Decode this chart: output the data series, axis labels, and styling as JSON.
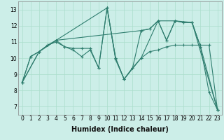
{
  "xlabel": "Humidex (Indice chaleur)",
  "bg_color": "#cceee8",
  "line_color": "#2e7d6e",
  "grid_color": "#aaddcc",
  "line1": [
    [
      0,
      8.5
    ],
    [
      1,
      10.1
    ],
    [
      2,
      10.4
    ],
    [
      3,
      10.8
    ],
    [
      4,
      11.1
    ],
    [
      5,
      10.7
    ],
    [
      6,
      10.5
    ],
    [
      7,
      10.1
    ],
    [
      8,
      10.5
    ],
    [
      9,
      9.4
    ],
    [
      10,
      13.1
    ],
    [
      11,
      9.9
    ],
    [
      12,
      8.7
    ],
    [
      13,
      9.4
    ],
    [
      14,
      11.7
    ],
    [
      15,
      11.8
    ],
    [
      16,
      12.3
    ],
    [
      17,
      11.1
    ],
    [
      18,
      12.3
    ],
    [
      19,
      12.2
    ],
    [
      20,
      12.2
    ],
    [
      21,
      10.7
    ],
    [
      22,
      7.9
    ],
    [
      23,
      6.8
    ]
  ],
  "line2": [
    [
      0,
      8.5
    ],
    [
      1,
      10.1
    ],
    [
      2,
      10.4
    ],
    [
      3,
      10.8
    ],
    [
      4,
      11.0
    ],
    [
      5,
      10.7
    ],
    [
      6,
      10.6
    ],
    [
      7,
      10.6
    ],
    [
      8,
      10.6
    ],
    [
      9,
      9.4
    ],
    [
      10,
      13.1
    ],
    [
      11,
      10.0
    ],
    [
      12,
      8.7
    ],
    [
      13,
      9.4
    ],
    [
      14,
      10.0
    ],
    [
      15,
      10.4
    ],
    [
      16,
      10.5
    ],
    [
      17,
      10.7
    ],
    [
      18,
      10.8
    ],
    [
      19,
      10.8
    ],
    [
      20,
      10.8
    ],
    [
      21,
      10.8
    ],
    [
      22,
      10.8
    ],
    [
      23,
      6.8
    ]
  ],
  "line3": [
    [
      0,
      8.5
    ],
    [
      2,
      10.4
    ],
    [
      4,
      11.1
    ],
    [
      10,
      13.1
    ],
    [
      11,
      10.0
    ],
    [
      12,
      8.7
    ],
    [
      14,
      10.0
    ],
    [
      16,
      12.3
    ],
    [
      18,
      12.3
    ],
    [
      20,
      12.2
    ],
    [
      21,
      10.7
    ],
    [
      23,
      6.8
    ]
  ],
  "line4": [
    [
      0,
      8.5
    ],
    [
      2,
      10.4
    ],
    [
      4,
      11.1
    ],
    [
      14,
      11.7
    ],
    [
      15,
      11.8
    ],
    [
      16,
      12.3
    ],
    [
      17,
      11.1
    ],
    [
      18,
      12.3
    ],
    [
      19,
      12.2
    ],
    [
      20,
      12.2
    ],
    [
      23,
      6.8
    ]
  ],
  "xlim": [
    -0.5,
    23.5
  ],
  "ylim": [
    6.5,
    13.5
  ],
  "yticks": [
    7,
    8,
    9,
    10,
    11,
    12,
    13
  ],
  "xticks": [
    0,
    1,
    2,
    3,
    4,
    5,
    6,
    7,
    8,
    9,
    10,
    11,
    12,
    13,
    14,
    15,
    16,
    17,
    18,
    19,
    20,
    21,
    22,
    23
  ],
  "tick_fontsize": 5.5,
  "label_fontsize": 7
}
